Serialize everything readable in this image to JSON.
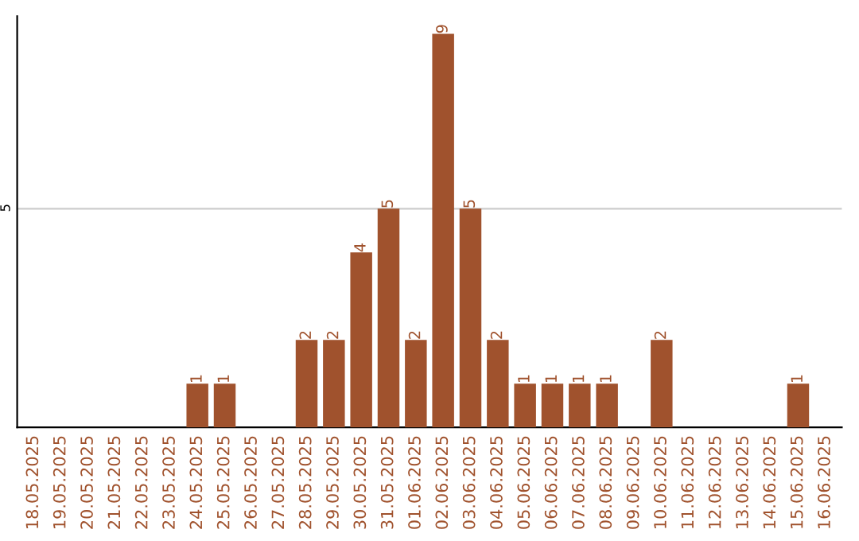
{
  "chart_data": {
    "type": "bar",
    "categories": [
      "18.05.2025",
      "19.05.2025",
      "20.05.2025",
      "21.05.2025",
      "22.05.2025",
      "23.05.2025",
      "24.05.2025",
      "25.05.2025",
      "26.05.2025",
      "27.05.2025",
      "28.05.2025",
      "29.05.2025",
      "30.05.2025",
      "31.05.2025",
      "01.06.2025",
      "02.06.2025",
      "03.06.2025",
      "04.06.2025",
      "05.06.2025",
      "06.06.2025",
      "07.06.2025",
      "08.06.2025",
      "09.06.2025",
      "10.06.2025",
      "11.06.2025",
      "12.06.2025",
      "13.06.2025",
      "14.06.2025",
      "15.06.2025",
      "16.06.2025"
    ],
    "values": [
      0,
      0,
      0,
      0,
      0,
      0,
      1,
      1,
      0,
      0,
      2,
      2,
      4,
      5,
      2,
      9,
      5,
      2,
      1,
      1,
      1,
      1,
      0,
      2,
      0,
      0,
      0,
      0,
      1,
      0
    ],
    "value_labels": [
      null,
      null,
      null,
      null,
      null,
      null,
      "1",
      "1",
      null,
      null,
      "2",
      "2",
      "4",
      "5",
      "2",
      "9",
      "5",
      "2",
      "1",
      "1",
      "1",
      "1",
      null,
      "2",
      null,
      null,
      null,
      null,
      "1",
      null
    ],
    "color": "#a0522d",
    "ylim": [
      0,
      9.4
    ],
    "yticks": [
      5
    ],
    "grid": "y"
  }
}
